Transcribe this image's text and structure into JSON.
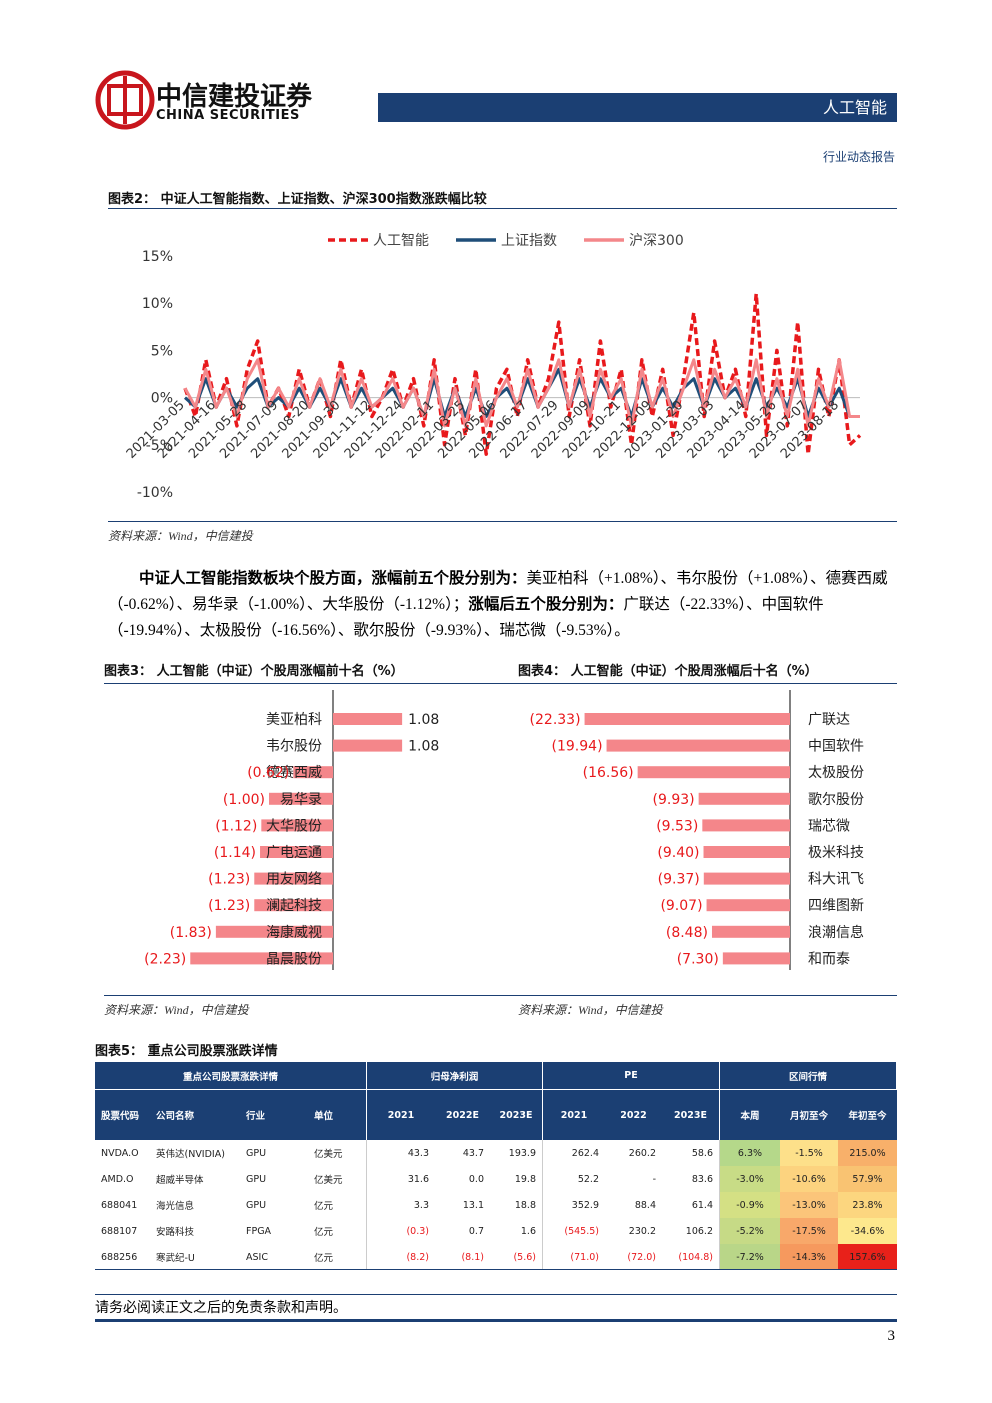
{
  "header": {
    "logo_cn": "中信建投证券",
    "logo_en": "CHINA SECURITIES",
    "section": "人工智能",
    "report_type": "行业动态报告"
  },
  "figure2": {
    "title": "图表2：  中证人工智能指数、上证指数、沪深300指数涨跌幅比较",
    "source": "资料来源：Wind，中信建投"
  },
  "paragraph": [
    "中证人工智能指数板块个股方面，涨幅前五个股分别为：",
    "美亚柏科（+1.08%）、韦尔股份（+1.08%）、德赛西威（-0.62%）、易华录（-1.00%）、大华股份（-1.12%）；",
    "涨幅后五个股分别为：",
    "广联达（-22.33%）、中国软件（-19.94%）、太极股份（-16.56%）、歌尔股份（-9.93%）、瑞芯微（-9.53%）。"
  ],
  "figure3": {
    "title": "图表3：  人工智能（中证）个股周涨幅前十名（%）",
    "source": "资料来源：Wind，中信建投"
  },
  "figure4": {
    "title": "图表4：  人工智能（中证）个股周涨幅后十名（%）",
    "source": "资料来源：Wind，中信建投"
  },
  "figure5": {
    "title": "图表5：  重点公司股票涨跌详情"
  },
  "chart_data": [
    {
      "type": "line",
      "categories": [
        "2021-03-05",
        null,
        null,
        "2021-04-16",
        null,
        null,
        "2021-05-28",
        null,
        null,
        "2021-07-09",
        null,
        null,
        "2021-08-20",
        null,
        null,
        "2021-09-30",
        null,
        null,
        "2021-11-12",
        null,
        null,
        "2021-12-24",
        null,
        null,
        "2022-02-11",
        null,
        null,
        "2022-03-25",
        null,
        null,
        "2022-05-06",
        null,
        null,
        "2022-06-17",
        null,
        null,
        "2022-07-29",
        null,
        null,
        "2022-09-09",
        null,
        null,
        "2022-10-21",
        null,
        null,
        "2022-12-09",
        null,
        null,
        "2023-01-20",
        null,
        null,
        "2023-03-03",
        null,
        null,
        "2023-04-14",
        null,
        null,
        "2023-05-26",
        null,
        null,
        "2023-07-07",
        null,
        null,
        "2023-08-18",
        null,
        null
      ],
      "series": [
        {
          "name": "人工智能",
          "color": "#e8191c",
          "line_style": "dashed",
          "values": [
            1,
            -2,
            4,
            -1,
            2,
            -3,
            3,
            6,
            -1,
            1,
            -2,
            3,
            -1,
            2,
            -2,
            4,
            -1,
            3,
            -2,
            0,
            3,
            -1,
            2,
            -3,
            4,
            -5,
            2,
            -4,
            3,
            -6,
            1,
            3,
            -2,
            4,
            -1,
            2,
            8,
            -2,
            4,
            -3,
            6,
            -1,
            3,
            -5,
            4,
            -2,
            3,
            -4,
            2,
            9,
            -2,
            6,
            0,
            3,
            -2,
            11,
            -4,
            5,
            -3,
            8,
            -6,
            3,
            -2,
            4,
            -5,
            -4
          ]
        },
        {
          "name": "上证指数",
          "color": "#1f4e79",
          "line_style": "solid",
          "values": [
            0,
            -1,
            2,
            -1,
            1,
            -1,
            1,
            2,
            -1,
            0,
            -1,
            1,
            -1,
            1,
            -1,
            2,
            -1,
            1,
            -1,
            0,
            1,
            -1,
            1,
            -2,
            2,
            -2,
            1,
            -2,
            1,
            -2,
            0,
            1,
            -1,
            2,
            -1,
            1,
            3,
            -1,
            2,
            -1,
            2,
            0,
            1,
            -2,
            2,
            -1,
            1,
            -1,
            1,
            2,
            -1,
            2,
            0,
            1,
            -1,
            2,
            -1,
            1,
            -1,
            2,
            -2,
            1,
            -1,
            1,
            -2,
            -2
          ]
        },
        {
          "name": "沪深300",
          "color": "#f4878a",
          "line_style": "solid",
          "values": [
            1,
            -1,
            3,
            -1,
            1,
            -2,
            2,
            4,
            -1,
            1,
            -1,
            2,
            -1,
            2,
            -1,
            3,
            -1,
            2,
            -1,
            0,
            2,
            -1,
            1,
            -2,
            3,
            -3,
            1,
            -3,
            2,
            -3,
            0,
            2,
            -1,
            3,
            -1,
            1,
            4,
            -1,
            3,
            -2,
            3,
            0,
            2,
            -3,
            3,
            -1,
            2,
            -2,
            1,
            4,
            -1,
            3,
            0,
            2,
            -1,
            4,
            -2,
            2,
            -2,
            3,
            -3,
            2,
            -1,
            4,
            -2,
            -2
          ]
        }
      ],
      "ylim": [
        -10,
        15
      ],
      "yticks": [
        {
          "value": -10,
          "label": "-10%"
        },
        {
          "value": -5,
          "label": "-5%"
        },
        {
          "value": 0,
          "label": "0%"
        },
        {
          "value": 5,
          "label": "5%"
        },
        {
          "value": 10,
          "label": "10%"
        },
        {
          "value": 15,
          "label": "15%"
        }
      ],
      "legend": "top"
    },
    {
      "type": "bar",
      "orientation": "horizontal",
      "color": "#f4868a",
      "categories": [
        "美亚柏科",
        "韦尔股份",
        "德赛西威",
        "易华录",
        "大华股份",
        "广电运通",
        "用友网络",
        "澜起科技",
        "海康威视",
        "晶晨股份"
      ],
      "values": [
        1.08,
        1.08,
        -0.62,
        -1.0,
        -1.12,
        -1.14,
        -1.23,
        -1.23,
        -1.83,
        -2.23
      ],
      "value_labels": [
        "1.08",
        "1.08",
        "(0.62)",
        "(1.00)",
        "(1.12)",
        "(1.14)",
        "(1.23)",
        "(1.23)",
        "(1.83)",
        "(2.23)"
      ]
    },
    {
      "type": "bar",
      "orientation": "horizontal",
      "color": "#f4868a",
      "categories": [
        "广联达",
        "中国软件",
        "太极股份",
        "歌尔股份",
        "瑞芯微",
        "极米科技",
        "科大讯飞",
        "四维图新",
        "浪潮信息",
        "和而泰"
      ],
      "values": [
        -22.33,
        -19.94,
        -16.56,
        -9.93,
        -9.53,
        -9.4,
        -9.37,
        -9.07,
        -8.48,
        -7.3
      ],
      "value_labels": [
        "(22.33)",
        "(19.94)",
        "(16.56)",
        "(9.93)",
        "(9.53)",
        "(9.40)",
        "(9.37)",
        "(9.07)",
        "(8.48)",
        "(7.30)"
      ]
    }
  ],
  "table": {
    "groups": [
      "重点公司股票涨跌详情",
      "归母净利润",
      "PE",
      "区间行情"
    ],
    "columns": [
      "股票代码",
      "公司名称",
      "行业",
      "单位",
      "2021",
      "2022E",
      "2023E",
      "2021",
      "2022",
      "2023E",
      "本周",
      "月初至今",
      "年初至今"
    ],
    "rows": [
      [
        "NVDA.O",
        "英伟达(NVIDIA)",
        "GPU",
        "亿美元",
        "43.3",
        "43.7",
        "193.9",
        "262.4",
        "260.2",
        "58.6",
        "6.3%",
        "-1.5%",
        "215.0%"
      ],
      [
        "AMD.O",
        "超威半导体",
        "GPU",
        "亿美元",
        "31.6",
        "0.0",
        "19.8",
        "52.2",
        "-",
        "83.6",
        "-3.0%",
        "-10.6%",
        "57.9%"
      ],
      [
        "688041",
        "海光信息",
        "GPU",
        "亿元",
        "3.3",
        "13.1",
        "18.8",
        "352.9",
        "88.4",
        "61.4",
        "-0.9%",
        "-13.0%",
        "23.8%"
      ],
      [
        "688107",
        "安路科技",
        "FPGA",
        "亿元",
        "(0.3)",
        "0.7",
        "1.6",
        "(545.5)",
        "230.2",
        "106.2",
        "-5.2%",
        "-17.5%",
        "-34.6%"
      ],
      [
        "688256",
        "寒武纪-U",
        "ASIC",
        "亿元",
        "(8.2)",
        "(8.1)",
        "(5.6)",
        "(71.0)",
        "(72.0)",
        "(104.8)",
        "-7.2%",
        "-14.3%",
        "157.6%"
      ]
    ],
    "heat_colors": [
      [
        "#b5d88a",
        "#fde08a",
        "#f8b06a"
      ],
      [
        "#c8dc86",
        "#fcd37f",
        "#f9c372"
      ],
      [
        "#d4e084",
        "#fbc57a",
        "#fcd67f"
      ],
      [
        "#c6da86",
        "#f8a86a",
        "#fde88d"
      ],
      [
        "#b9d688",
        "#f6995e",
        "#e8211a"
      ]
    ]
  },
  "footer": {
    "disclaimer": "请务必阅读正文之后的免责条款和声明。",
    "page": 3
  }
}
